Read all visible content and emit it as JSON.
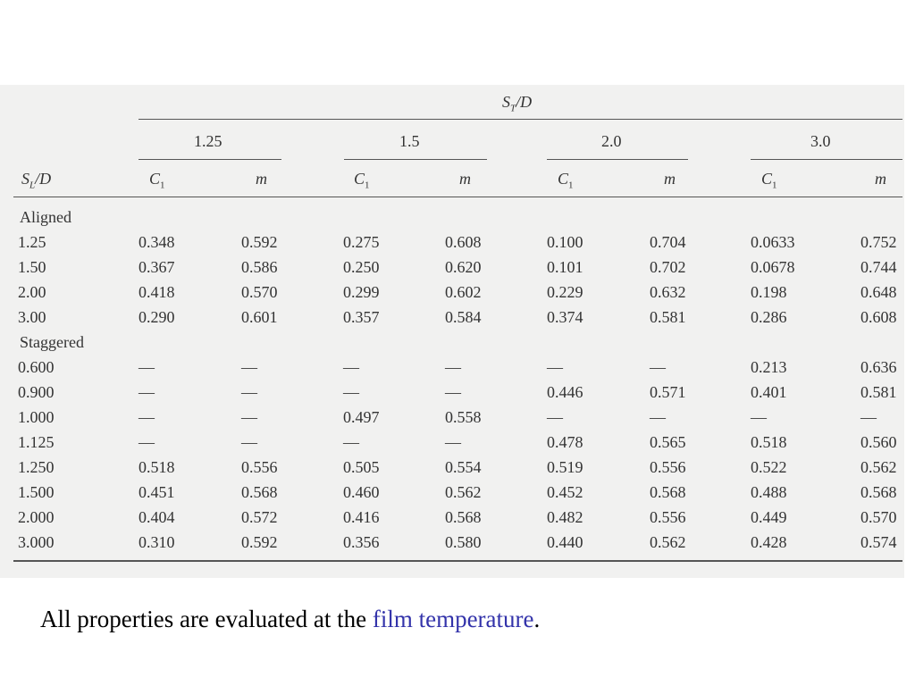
{
  "header": {
    "spanning": {
      "symbol": "S",
      "subscript": "T",
      "suffix": "/D"
    },
    "groups": [
      "1.25",
      "1.5",
      "2.0",
      "3.0"
    ],
    "row_header": {
      "symbol": "S",
      "subscript": "L",
      "suffix": "/D"
    },
    "columns": [
      {
        "symbol": "C",
        "subscript": "1"
      },
      {
        "symbol": "m"
      },
      {
        "symbol": "C",
        "subscript": "1"
      },
      {
        "symbol": "m"
      },
      {
        "symbol": "C",
        "subscript": "1"
      },
      {
        "symbol": "m"
      },
      {
        "symbol": "C",
        "subscript": "1"
      },
      {
        "symbol": "m"
      }
    ]
  },
  "sections": [
    {
      "label": "Aligned",
      "rows": [
        {
          "label": "1.25",
          "cells": [
            "0.348",
            "0.592",
            "0.275",
            "0.608",
            "0.100",
            "0.704",
            "0.0633",
            "0.752"
          ]
        },
        {
          "label": "1.50",
          "cells": [
            "0.367",
            "0.586",
            "0.250",
            "0.620",
            "0.101",
            "0.702",
            "0.0678",
            "0.744"
          ]
        },
        {
          "label": "2.00",
          "cells": [
            "0.418",
            "0.570",
            "0.299",
            "0.602",
            "0.229",
            "0.632",
            "0.198",
            "0.648"
          ]
        },
        {
          "label": "3.00",
          "cells": [
            "0.290",
            "0.601",
            "0.357",
            "0.584",
            "0.374",
            "0.581",
            "0.286",
            "0.608"
          ]
        }
      ]
    },
    {
      "label": "Staggered",
      "rows": [
        {
          "label": "0.600",
          "cells": [
            "—",
            "—",
            "—",
            "—",
            "—",
            "—",
            "0.213",
            "0.636"
          ]
        },
        {
          "label": "0.900",
          "cells": [
            "—",
            "—",
            "—",
            "—",
            "0.446",
            "0.571",
            "0.401",
            "0.581"
          ]
        },
        {
          "label": "1.000",
          "cells": [
            "—",
            "—",
            "0.497",
            "0.558",
            "—",
            "—",
            "—",
            "—"
          ]
        },
        {
          "label": "1.125",
          "cells": [
            "—",
            "—",
            "—",
            "—",
            "0.478",
            "0.565",
            "0.518",
            "0.560"
          ]
        },
        {
          "label": "1.250",
          "cells": [
            "0.518",
            "0.556",
            "0.505",
            "0.554",
            "0.519",
            "0.556",
            "0.522",
            "0.562"
          ]
        },
        {
          "label": "1.500",
          "cells": [
            "0.451",
            "0.568",
            "0.460",
            "0.562",
            "0.452",
            "0.568",
            "0.488",
            "0.568"
          ]
        },
        {
          "label": "2.000",
          "cells": [
            "0.404",
            "0.572",
            "0.416",
            "0.568",
            "0.482",
            "0.556",
            "0.449",
            "0.570"
          ]
        },
        {
          "label": "3.000",
          "cells": [
            "0.310",
            "0.592",
            "0.356",
            "0.580",
            "0.440",
            "0.562",
            "0.428",
            "0.574"
          ]
        }
      ]
    }
  ],
  "caption": {
    "text": "All properties are evaluated at the ",
    "highlight": "film temperature",
    "end": "."
  }
}
